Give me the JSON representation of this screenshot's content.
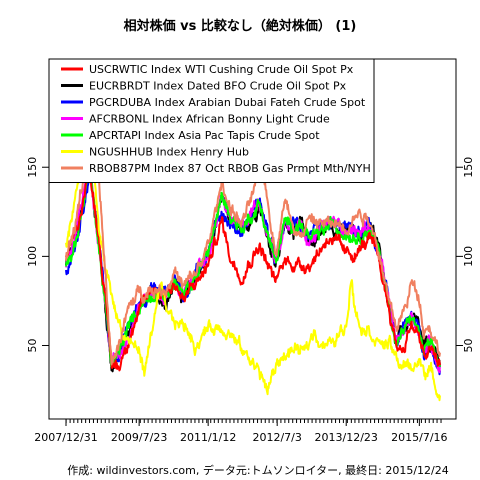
{
  "chart_data": {
    "type": "line",
    "title": "相対株価 vs 比較なし（絶対株価） (1)",
    "caption": "作成: wildinvestors.com, データ元:トムソンロイター, 最終日: 2015/12/24",
    "x_range": [
      "2007-12-31",
      "2015/12/24"
    ],
    "ylim": [
      20,
      195
    ],
    "x_ticks": [
      {
        "date": "2007-12-31",
        "label": "2007/12/31"
      },
      {
        "date": "2009-07-23",
        "label": "2009/7/23"
      },
      {
        "date": "2011-01-12",
        "label": "2011/1/12"
      },
      {
        "date": "2012-07-03",
        "label": "2012/7/3"
      },
      {
        "date": "2013-12-23",
        "label": "2013/12/23"
      },
      {
        "date": "2015-07-16",
        "label": "2015/7/16"
      }
    ],
    "y_ticks": [
      50,
      100,
      150
    ],
    "legend_position": "top-left",
    "grid": false,
    "series": [
      {
        "name": "USCRWTIC Index WTI Cushing Crude Oil Spot Px",
        "color": "#ff0000",
        "z": 5,
        "points": [
          [
            "2007-12-31",
            100
          ],
          [
            "2008-03-15",
            112
          ],
          [
            "2008-07-03",
            150
          ],
          [
            "2008-09-15",
            110
          ],
          [
            "2008-12-20",
            40
          ],
          [
            "2009-02-15",
            38
          ],
          [
            "2009-05-01",
            55
          ],
          [
            "2009-07-23",
            68
          ],
          [
            "2009-11-01",
            82
          ],
          [
            "2010-02-15",
            80
          ],
          [
            "2010-05-01",
            85
          ],
          [
            "2010-07-01",
            75
          ],
          [
            "2010-10-01",
            84
          ],
          [
            "2011-01-12",
            95
          ],
          [
            "2011-04-30",
            120
          ],
          [
            "2011-07-01",
            100
          ],
          [
            "2011-10-01",
            90
          ],
          [
            "2012-02-15",
            107
          ],
          [
            "2012-06-20",
            85
          ],
          [
            "2012-09-01",
            98
          ],
          [
            "2013-01-01",
            95
          ],
          [
            "2013-04-01",
            97
          ],
          [
            "2013-08-15",
            112
          ],
          [
            "2013-12-23",
            100
          ],
          [
            "2014-04-01",
            103
          ],
          [
            "2014-06-20",
            110
          ],
          [
            "2014-09-01",
            97
          ],
          [
            "2014-12-01",
            68
          ],
          [
            "2015-01-15",
            50
          ],
          [
            "2015-03-15",
            48
          ],
          [
            "2015-05-15",
            63
          ],
          [
            "2015-07-16",
            54
          ],
          [
            "2015-08-20",
            42
          ],
          [
            "2015-10-01",
            48
          ],
          [
            "2015-12-24",
            39
          ]
        ]
      },
      {
        "name": "EUCRBRDT Index Dated BFO Crude Oil Spot Px",
        "color": "#000000",
        "z": 1,
        "points": [
          [
            "2007-12-31",
            95
          ],
          [
            "2008-03-15",
            108
          ],
          [
            "2008-07-03",
            152
          ],
          [
            "2008-09-15",
            105
          ],
          [
            "2008-12-20",
            38
          ],
          [
            "2009-02-15",
            44
          ],
          [
            "2009-05-01",
            57
          ],
          [
            "2009-07-23",
            72
          ],
          [
            "2009-11-01",
            79
          ],
          [
            "2010-02-15",
            76
          ],
          [
            "2010-05-01",
            85
          ],
          [
            "2010-07-01",
            76
          ],
          [
            "2010-10-01",
            87
          ],
          [
            "2011-01-12",
            100
          ],
          [
            "2011-04-30",
            130
          ],
          [
            "2011-07-01",
            120
          ],
          [
            "2011-10-01",
            112
          ],
          [
            "2012-02-15",
            130
          ],
          [
            "2012-06-20",
            95
          ],
          [
            "2012-09-01",
            117
          ],
          [
            "2013-01-01",
            117
          ],
          [
            "2013-04-01",
            107
          ],
          [
            "2013-08-15",
            118
          ],
          [
            "2013-12-23",
            114
          ],
          [
            "2014-04-01",
            112
          ],
          [
            "2014-06-20",
            118
          ],
          [
            "2014-09-01",
            105
          ],
          [
            "2014-12-01",
            72
          ],
          [
            "2015-01-15",
            52
          ],
          [
            "2015-03-15",
            58
          ],
          [
            "2015-05-15",
            67
          ],
          [
            "2015-07-16",
            58
          ],
          [
            "2015-08-20",
            47
          ],
          [
            "2015-10-01",
            51
          ],
          [
            "2015-12-24",
            38
          ]
        ]
      },
      {
        "name": "PGCRDUBA Index Arabian Dubai Fateh Crude Spot",
        "color": "#0000ff",
        "z": 2,
        "points": [
          [
            "2007-12-31",
            92
          ],
          [
            "2008-03-15",
            105
          ],
          [
            "2008-07-03",
            148
          ],
          [
            "2008-09-15",
            107
          ],
          [
            "2008-12-20",
            40
          ],
          [
            "2009-02-15",
            46
          ],
          [
            "2009-05-01",
            60
          ],
          [
            "2009-07-23",
            74
          ],
          [
            "2009-11-01",
            82
          ],
          [
            "2010-02-15",
            80
          ],
          [
            "2010-05-01",
            88
          ],
          [
            "2010-07-01",
            78
          ],
          [
            "2010-10-01",
            90
          ],
          [
            "2011-01-12",
            102
          ],
          [
            "2011-04-30",
            128
          ],
          [
            "2011-07-01",
            118
          ],
          [
            "2011-10-01",
            114
          ],
          [
            "2012-02-15",
            132
          ],
          [
            "2012-06-20",
            97
          ],
          [
            "2012-09-01",
            118
          ],
          [
            "2013-01-01",
            118
          ],
          [
            "2013-04-01",
            110
          ],
          [
            "2013-08-15",
            116
          ],
          [
            "2013-12-23",
            116
          ],
          [
            "2014-04-01",
            113
          ],
          [
            "2014-06-20",
            116
          ],
          [
            "2014-09-01",
            104
          ],
          [
            "2014-12-01",
            70
          ],
          [
            "2015-01-15",
            50
          ],
          [
            "2015-03-15",
            59
          ],
          [
            "2015-05-15",
            69
          ],
          [
            "2015-07-16",
            60
          ],
          [
            "2015-08-20",
            47
          ],
          [
            "2015-10-01",
            50
          ],
          [
            "2015-12-24",
            36
          ]
        ]
      },
      {
        "name": "AFCRBONL Index African Bonny Light Crude",
        "color": "#ff00ff",
        "z": 3,
        "points": [
          [
            "2007-12-31",
            96
          ],
          [
            "2008-03-15",
            110
          ],
          [
            "2008-07-03",
            155
          ],
          [
            "2008-09-15",
            107
          ],
          [
            "2008-12-20",
            40
          ],
          [
            "2009-02-15",
            45
          ],
          [
            "2009-05-01",
            58
          ],
          [
            "2009-07-23",
            73
          ],
          [
            "2009-11-01",
            80
          ],
          [
            "2010-02-15",
            77
          ],
          [
            "2010-05-01",
            86
          ],
          [
            "2010-07-01",
            77
          ],
          [
            "2010-10-01",
            88
          ],
          [
            "2011-01-12",
            101
          ],
          [
            "2011-04-30",
            132
          ],
          [
            "2011-07-01",
            121
          ],
          [
            "2011-10-01",
            115
          ],
          [
            "2012-02-15",
            133
          ],
          [
            "2012-06-20",
            96
          ],
          [
            "2012-09-01",
            119
          ],
          [
            "2013-01-01",
            119
          ],
          [
            "2013-04-01",
            108
          ],
          [
            "2013-08-15",
            120
          ],
          [
            "2013-12-23",
            116
          ],
          [
            "2014-04-01",
            113
          ],
          [
            "2014-06-20",
            118
          ],
          [
            "2014-09-01",
            102
          ],
          [
            "2014-12-01",
            70
          ],
          [
            "2015-01-15",
            51
          ],
          [
            "2015-03-15",
            58
          ],
          [
            "2015-05-15",
            68
          ],
          [
            "2015-07-16",
            58
          ],
          [
            "2015-08-20",
            47
          ],
          [
            "2015-10-01",
            52
          ],
          [
            "2015-12-24",
            39
          ]
        ]
      },
      {
        "name": "APCRTAPI Index Asia Pac Tapis Crude Spot",
        "color": "#00ff00",
        "z": 4,
        "points": [
          [
            "2007-12-31",
            94
          ],
          [
            "2008-03-15",
            108
          ],
          [
            "2008-07-03",
            150
          ],
          [
            "2008-09-15",
            104
          ],
          [
            "2008-12-20",
            38
          ],
          [
            "2009-02-15",
            45
          ],
          [
            "2009-05-01",
            60
          ],
          [
            "2009-07-23",
            72
          ],
          [
            "2009-11-01",
            80
          ],
          [
            "2010-02-15",
            78
          ],
          [
            "2010-05-01",
            86
          ],
          [
            "2010-07-01",
            76
          ],
          [
            "2010-10-01",
            88
          ],
          [
            "2011-01-12",
            103
          ],
          [
            "2011-04-30",
            133
          ],
          [
            "2011-07-01",
            124
          ],
          [
            "2011-10-01",
            115
          ],
          [
            "2012-02-15",
            130
          ],
          [
            "2012-06-20",
            96
          ],
          [
            "2012-09-01",
            118
          ],
          [
            "2013-01-01",
            118
          ],
          [
            "2013-04-01",
            108
          ],
          [
            "2013-08-15",
            117
          ],
          [
            "2013-12-23",
            114
          ],
          [
            "2014-04-01",
            112
          ],
          [
            "2014-06-20",
            116
          ],
          [
            "2014-09-01",
            103
          ],
          [
            "2014-12-01",
            70
          ],
          [
            "2015-01-15",
            50
          ],
          [
            "2015-03-15",
            57
          ],
          [
            "2015-05-15",
            66
          ],
          [
            "2015-07-16",
            57
          ],
          [
            "2015-08-20",
            46
          ],
          [
            "2015-10-01",
            50
          ],
          [
            "2015-12-24",
            38
          ]
        ]
      },
      {
        "name": "NGUSHHUB Index Henry Hub",
        "color": "#ffff00",
        "z": 6,
        "points": [
          [
            "2007-12-31",
            105
          ],
          [
            "2008-03-15",
            133
          ],
          [
            "2008-07-03",
            183
          ],
          [
            "2008-09-15",
            110
          ],
          [
            "2008-12-20",
            78
          ],
          [
            "2009-03-15",
            57
          ],
          [
            "2009-05-01",
            53
          ],
          [
            "2009-07-23",
            47
          ],
          [
            "2009-09-05",
            35
          ],
          [
            "2009-11-01",
            60
          ],
          [
            "2010-01-07",
            82
          ],
          [
            "2010-03-01",
            65
          ],
          [
            "2010-06-01",
            62
          ],
          [
            "2010-08-01",
            60
          ],
          [
            "2010-10-01",
            50
          ],
          [
            "2011-01-12",
            60
          ],
          [
            "2011-04-30",
            61
          ],
          [
            "2011-07-01",
            58
          ],
          [
            "2011-10-01",
            47
          ],
          [
            "2012-01-15",
            40
          ],
          [
            "2012-04-19",
            25
          ],
          [
            "2012-07-03",
            40
          ],
          [
            "2012-09-01",
            45
          ],
          [
            "2012-12-01",
            48
          ],
          [
            "2013-02-01",
            45
          ],
          [
            "2013-04-15",
            58
          ],
          [
            "2013-06-01",
            53
          ],
          [
            "2013-09-01",
            50
          ],
          [
            "2013-12-23",
            61
          ],
          [
            "2014-02-05",
            93
          ],
          [
            "2014-02-20",
            78
          ],
          [
            "2014-04-01",
            63
          ],
          [
            "2014-06-20",
            60
          ],
          [
            "2014-09-01",
            52
          ],
          [
            "2014-12-01",
            50
          ],
          [
            "2015-01-15",
            42
          ],
          [
            "2015-03-15",
            38
          ],
          [
            "2015-05-15",
            38
          ],
          [
            "2015-07-16",
            40
          ],
          [
            "2015-09-01",
            37
          ],
          [
            "2015-10-20",
            34
          ],
          [
            "2015-12-24",
            22
          ]
        ]
      },
      {
        "name": "RBOB87PM Index 87 Oct RBOB Gas Prmpt Mth/NYH",
        "color": "#f08060",
        "z": 7,
        "points": [
          [
            "2007-12-31",
            100
          ],
          [
            "2008-03-15",
            118
          ],
          [
            "2008-05-28",
            150
          ],
          [
            "2008-09-10",
            145
          ],
          [
            "2008-12-20",
            40
          ],
          [
            "2009-02-15",
            52
          ],
          [
            "2009-05-01",
            70
          ],
          [
            "2009-07-23",
            80
          ],
          [
            "2009-11-01",
            82
          ],
          [
            "2010-02-15",
            82
          ],
          [
            "2010-05-01",
            92
          ],
          [
            "2010-07-01",
            82
          ],
          [
            "2010-10-01",
            90
          ],
          [
            "2011-01-12",
            105
          ],
          [
            "2011-04-30",
            142
          ],
          [
            "2011-07-01",
            128
          ],
          [
            "2011-10-01",
            118
          ],
          [
            "2012-03-15",
            148
          ],
          [
            "2012-06-20",
            103
          ],
          [
            "2012-09-01",
            131
          ],
          [
            "2013-01-01",
            111
          ],
          [
            "2013-03-01",
            120
          ],
          [
            "2013-08-15",
            118
          ],
          [
            "2013-12-23",
            118
          ],
          [
            "2014-04-01",
            125
          ],
          [
            "2014-06-20",
            122
          ],
          [
            "2014-09-01",
            105
          ],
          [
            "2014-12-01",
            70
          ],
          [
            "2015-01-15",
            60
          ],
          [
            "2015-03-15",
            68
          ],
          [
            "2015-05-15",
            85
          ],
          [
            "2015-07-16",
            78
          ],
          [
            "2015-08-20",
            60
          ],
          [
            "2015-10-01",
            62
          ],
          [
            "2015-12-24",
            46
          ]
        ]
      }
    ]
  }
}
